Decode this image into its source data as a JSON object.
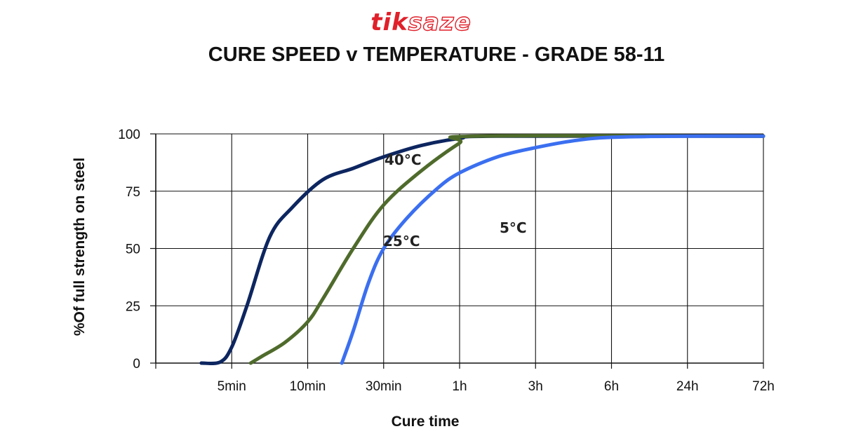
{
  "logo": {
    "part1": "tik",
    "part2": "saze"
  },
  "chart_data": {
    "type": "line",
    "title": "CURE SPEED v TEMPERATURE - GRADE 58-11",
    "xlabel": "Cure time",
    "ylabel": "%Of full  strength on steel",
    "categories": [
      "5min",
      "10min",
      "30min",
      "1h",
      "3h",
      "6h",
      "24h",
      "72h"
    ],
    "ylim": [
      0,
      100
    ],
    "yticks": [
      0,
      25,
      50,
      75,
      100
    ],
    "grid": true,
    "series": [
      {
        "name": "40°C",
        "color": "#0d2660",
        "points": [
          [
            0.6,
            0
          ],
          [
            0.85,
            0.5
          ],
          [
            1.0,
            7
          ],
          [
            1.2,
            25
          ],
          [
            1.5,
            55
          ],
          [
            1.8,
            68
          ],
          [
            2.2,
            80
          ],
          [
            2.6,
            85
          ],
          [
            3.0,
            90
          ],
          [
            3.5,
            95
          ],
          [
            4.0,
            98
          ],
          [
            4.5,
            99
          ],
          [
            8,
            99
          ]
        ]
      },
      {
        "name": "25°C",
        "color": "#4f6b2c",
        "points": [
          [
            1.25,
            0
          ],
          [
            1.4,
            3
          ],
          [
            1.7,
            9
          ],
          [
            2.0,
            18
          ],
          [
            2.2,
            28
          ],
          [
            2.6,
            50
          ],
          [
            3.0,
            69
          ],
          [
            3.5,
            84
          ],
          [
            4.0,
            96
          ],
          [
            4.2,
            99
          ],
          [
            8,
            99
          ]
        ]
      },
      {
        "name": "5°C",
        "color": "#3b6ff0",
        "points": [
          [
            2.45,
            0
          ],
          [
            2.6,
            14
          ],
          [
            2.8,
            35
          ],
          [
            3.0,
            50
          ],
          [
            3.3,
            63
          ],
          [
            3.7,
            76
          ],
          [
            4.0,
            83
          ],
          [
            4.5,
            90
          ],
          [
            5.0,
            94
          ],
          [
            5.5,
            97
          ],
          [
            6.0,
            98.5
          ],
          [
            7.0,
            99
          ],
          [
            8,
            99
          ]
        ]
      }
    ]
  }
}
